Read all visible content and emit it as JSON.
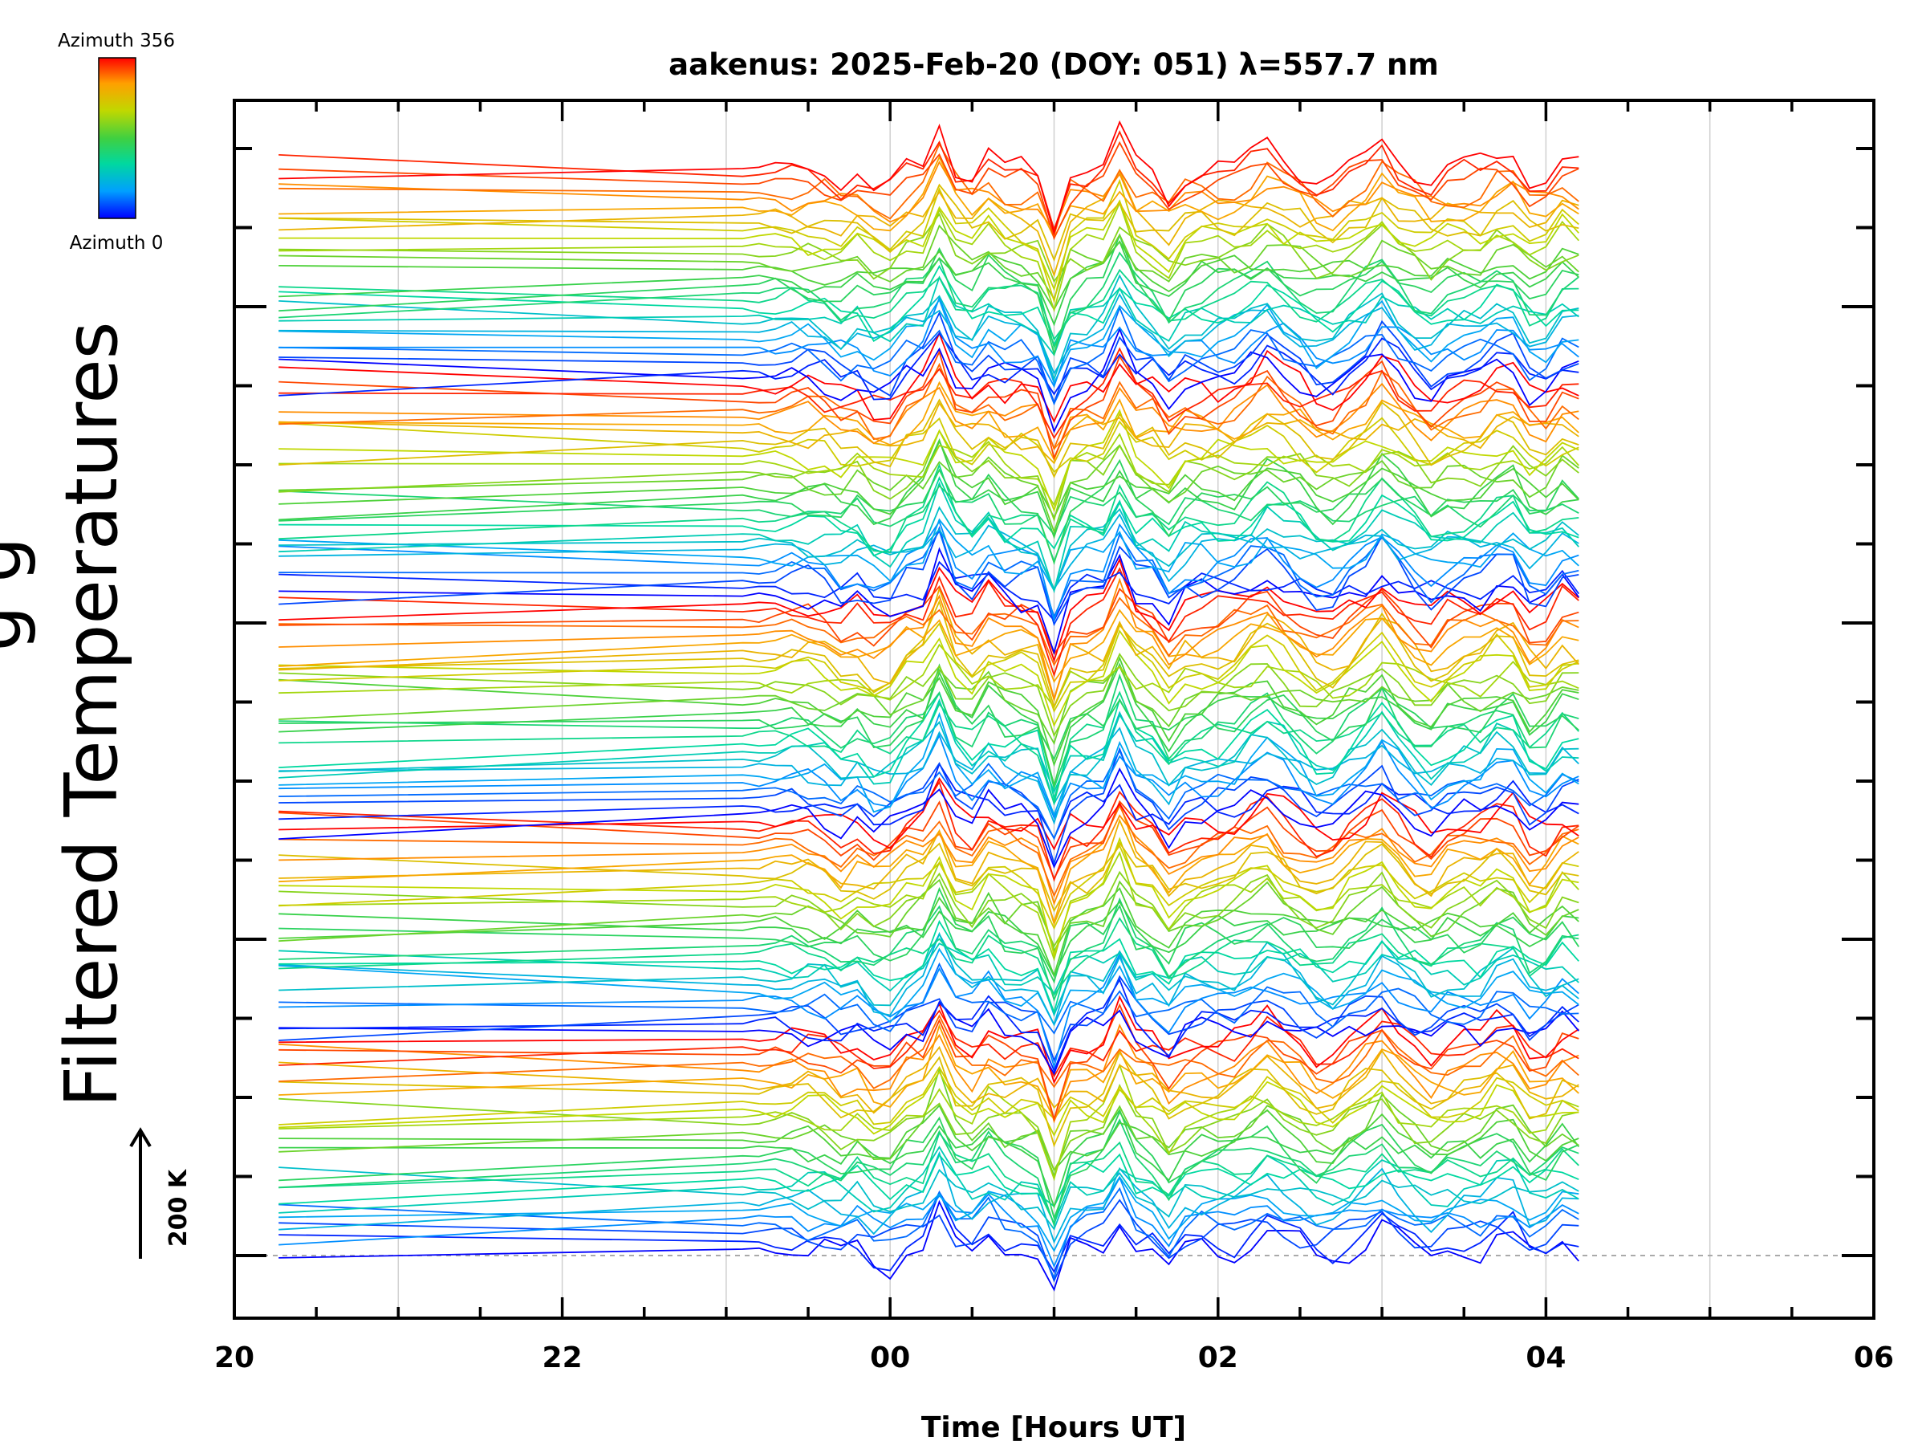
{
  "chart_data": {
    "type": "line",
    "title": "aakenus: 2025-Feb-20 (DOY: 051) λ=557.7 nm",
    "xlabel": "Time [Hours UT]",
    "ylabel": "Filtered Temperatures",
    "ylabel_partial": "g     g",
    "xlim": [
      20,
      30
    ],
    "xticks": [
      20,
      22,
      24,
      26,
      28,
      30
    ],
    "xtick_labels": [
      "20",
      "22",
      "00",
      "02",
      "04",
      "06"
    ],
    "data_span_hours": [
      20.27,
      28.2
    ],
    "scale_bar": {
      "value": 200,
      "unit": "K",
      "label": "200 K"
    },
    "colorbar": {
      "top_label": "Azimuth  356",
      "bottom_label": "Azimuth  0",
      "min": 0,
      "max": 356,
      "colors": [
        "#0000ff",
        "#00a0ff",
        "#00d8a0",
        "#40d040",
        "#c0d800",
        "#ffa000",
        "#ff0000"
      ]
    },
    "series_count": 140,
    "series_groups": 5,
    "legend_position": "top-left",
    "grid": true
  }
}
